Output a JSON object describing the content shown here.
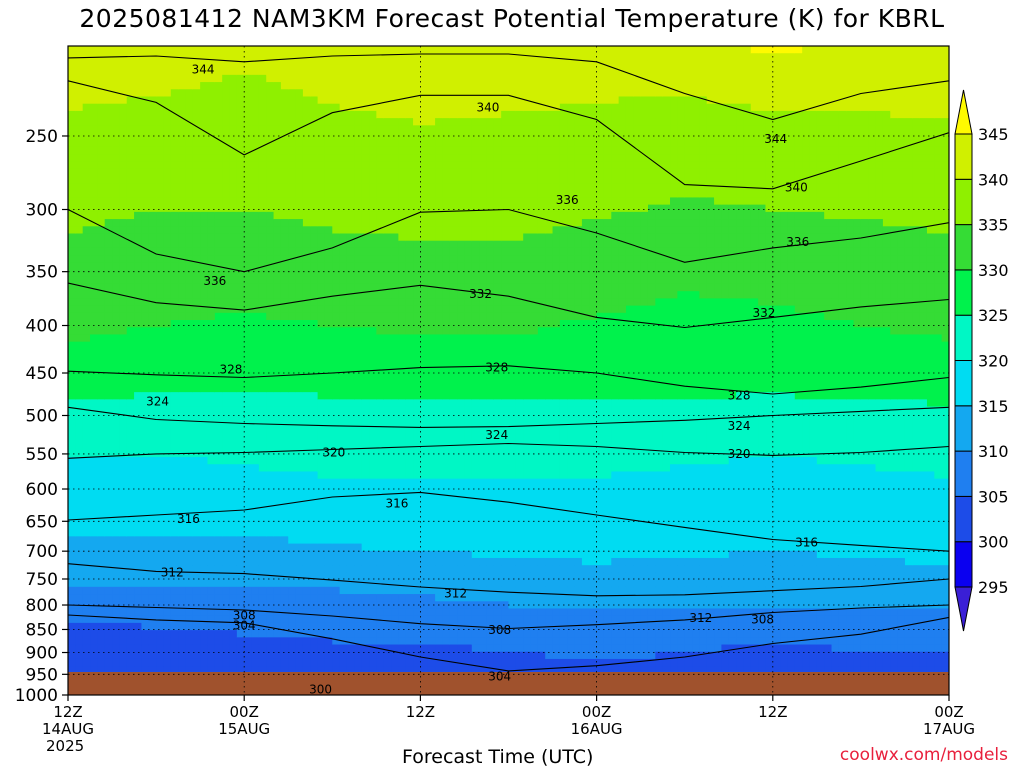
{
  "chart_data": {
    "type": "heatmap",
    "title": "2025081412 NAM3KM Forecast Potential Temperature (K) for KBRL",
    "xlabel": "Forecast Time (UTC)",
    "ylabel": "",
    "credit": "coolwx.com/models",
    "x_range_hours": [
      0,
      60
    ],
    "x_ticks": [
      {
        "hour": 0,
        "lines": [
          "12Z",
          "14AUG",
          "2025"
        ]
      },
      {
        "hour": 12,
        "lines": [
          "00Z",
          "15AUG"
        ]
      },
      {
        "hour": 24,
        "lines": [
          "12Z"
        ]
      },
      {
        "hour": 36,
        "lines": [
          "00Z",
          "16AUG"
        ]
      },
      {
        "hour": 48,
        "lines": [
          "12Z"
        ]
      },
      {
        "hour": 60,
        "lines": [
          "00Z",
          "17AUG"
        ]
      }
    ],
    "y_scale": "log-pressure",
    "y_range_hPa": [
      200,
      1000
    ],
    "y_ticks": [
      250,
      300,
      350,
      400,
      450,
      500,
      550,
      600,
      650,
      700,
      750,
      800,
      850,
      900,
      950,
      1000
    ],
    "grid": true,
    "colorbar": {
      "levels": [
        295,
        300,
        305,
        310,
        315,
        320,
        325,
        330,
        335,
        340,
        345
      ],
      "colors": [
        "#3a1fd6",
        "#0a00f0",
        "#1d4ce8",
        "#1f7ff0",
        "#14a8f0",
        "#00dcf2",
        "#00f7c5",
        "#00f24c",
        "#35dc35",
        "#8ff000",
        "#d0f000",
        "#fffa00"
      ]
    },
    "series": [
      {
        "level": 300,
        "label": "300",
        "x": [
          15,
          17,
          20,
          22,
          24,
          26,
          28,
          29
        ],
        "y": [
          986,
          978,
          975,
          975,
          975,
          976,
          978,
          990
        ]
      },
      {
        "level": 304,
        "label": "304",
        "x": [
          0,
          6,
          12,
          18,
          24,
          30,
          36,
          42,
          48,
          54,
          60
        ],
        "y": [
          820,
          830,
          836,
          870,
          910,
          942,
          930,
          910,
          880,
          860,
          825
        ]
      },
      {
        "level": 308,
        "label": "308",
        "x": [
          0,
          6,
          12,
          18,
          24,
          30,
          36,
          42,
          48,
          54,
          60
        ],
        "y": [
          800,
          805,
          810,
          822,
          838,
          848,
          840,
          830,
          815,
          806,
          800
        ]
      },
      {
        "level": 312,
        "label": "312",
        "x": [
          0,
          6,
          12,
          18,
          24,
          30,
          36,
          42,
          48,
          54,
          60
        ],
        "y": [
          722,
          736,
          740,
          752,
          765,
          775,
          782,
          780,
          772,
          764,
          750
        ]
      },
      {
        "level": 316,
        "label": "316",
        "x": [
          0,
          6,
          12,
          18,
          24,
          30,
          36,
          42,
          48,
          54,
          60
        ],
        "y": [
          648,
          640,
          632,
          612,
          605,
          620,
          640,
          660,
          680,
          690,
          700
        ]
      },
      {
        "level": 320,
        "label": "320",
        "x": [
          0,
          6,
          12,
          18,
          24,
          30,
          36,
          42,
          48,
          54,
          60
        ],
        "y": [
          556,
          550,
          548,
          544,
          540,
          536,
          540,
          548,
          552,
          548,
          540
        ]
      },
      {
        "level": 324,
        "label": "324",
        "x": [
          0,
          6,
          12,
          18,
          24,
          30,
          36,
          42,
          48,
          54,
          60
        ],
        "y": [
          490,
          505,
          510,
          513,
          515,
          514,
          510,
          506,
          500,
          495,
          490
        ]
      },
      {
        "level": 328,
        "label": "328",
        "x": [
          0,
          6,
          12,
          18,
          24,
          30,
          36,
          42,
          48,
          54,
          60
        ],
        "y": [
          448,
          452,
          455,
          450,
          444,
          442,
          450,
          465,
          474,
          466,
          455
        ]
      },
      {
        "level": 332,
        "label": "332",
        "x": [
          0,
          6,
          12,
          18,
          24,
          30,
          36,
          42,
          48,
          54,
          60
        ],
        "y": [
          360,
          378,
          385,
          372,
          362,
          372,
          392,
          402,
          392,
          382,
          375
        ]
      },
      {
        "level": 336,
        "label": "336",
        "x": [
          0,
          6,
          12,
          18,
          24,
          30,
          36,
          42,
          48,
          54,
          60
        ],
        "y": [
          300,
          335,
          350,
          330,
          302,
          300,
          318,
          342,
          330,
          322,
          310
        ]
      },
      {
        "level": 340,
        "label": "340",
        "x": [
          0,
          6,
          12,
          18,
          24,
          30,
          36,
          42,
          48,
          54,
          60
        ],
        "y": [
          218,
          230,
          262,
          236,
          226,
          226,
          240,
          282,
          285,
          266,
          248
        ]
      },
      {
        "level": 344,
        "label": "344",
        "x": [
          0,
          6,
          12,
          18,
          24,
          30,
          36,
          42,
          48,
          54,
          60
        ],
        "y": [
          206,
          205,
          208,
          205,
          204,
          204,
          208,
          225,
          240,
          225,
          218
        ]
      }
    ],
    "field": {
      "x": [
        0,
        6,
        12,
        18,
        24,
        30,
        36,
        42,
        48,
        54,
        60
      ],
      "rows": [
        {
          "p": 1000,
          "v": [
            300.5,
            301,
            301,
            301,
            300,
            300,
            301,
            301,
            300,
            301,
            302
          ]
        },
        {
          "p": 950,
          "v": [
            300,
            301.5,
            302.5,
            303,
            302,
            302,
            303,
            303,
            302,
            303,
            303
          ]
        },
        {
          "p": 900,
          "v": [
            300,
            302,
            303,
            304,
            304,
            305,
            306,
            305,
            304,
            305,
            305
          ]
        },
        {
          "p": 850,
          "v": [
            303,
            305,
            305.5,
            306,
            306.5,
            307,
            307.5,
            307,
            306,
            306.5,
            307.5
          ]
        },
        {
          "p": 800,
          "v": [
            308,
            308,
            307.5,
            308,
            309,
            310,
            310.5,
            310,
            310,
            310,
            310.5
          ]
        },
        {
          "p": 750,
          "v": [
            311.5,
            311,
            311,
            311.5,
            312,
            313,
            313.5,
            313,
            313,
            313.5,
            314
          ]
        },
        {
          "p": 700,
          "v": [
            314,
            313.5,
            313.5,
            314.5,
            315,
            315.5,
            316,
            315.5,
            315,
            315.5,
            316
          ]
        },
        {
          "p": 650,
          "v": [
            316,
            316.5,
            316.5,
            317,
            317.5,
            317.5,
            317.5,
            317,
            316.5,
            316.5,
            316.5
          ]
        },
        {
          "p": 600,
          "v": [
            318.5,
            318.5,
            319,
            319.5,
            319.5,
            319.5,
            319.5,
            319,
            319,
            319,
            319.5
          ]
        },
        {
          "p": 550,
          "v": [
            320,
            320,
            320.5,
            321,
            321,
            321,
            321,
            320.5,
            320,
            320.5,
            321
          ]
        },
        {
          "p": 500,
          "v": [
            323.5,
            322.5,
            322.5,
            323,
            323,
            323,
            323,
            323.5,
            323.5,
            324,
            324
          ]
        },
        {
          "p": 450,
          "v": [
            328,
            327.5,
            327,
            327.5,
            328.5,
            328.5,
            328,
            327,
            326.5,
            327,
            327.5
          ]
        },
        {
          "p": 400,
          "v": [
            331,
            330,
            329.5,
            330,
            330.5,
            330.5,
            329.5,
            328.5,
            329,
            330,
            331
          ]
        },
        {
          "p": 350,
          "v": [
            333.5,
            332,
            331.5,
            333,
            334,
            333.5,
            332.5,
            331,
            331.5,
            332.5,
            333.5
          ]
        },
        {
          "p": 300,
          "v": [
            336,
            335,
            335,
            336,
            336,
            336.5,
            335.5,
            334.5,
            335,
            335.5,
            336
          ]
        },
        {
          "p": 250,
          "v": [
            339,
            338,
            337.5,
            339,
            339.5,
            339,
            338.5,
            337.5,
            337.5,
            338.5,
            339
          ]
        },
        {
          "p": 200,
          "v": [
            342.5,
            342.5,
            341,
            342,
            343,
            343,
            342.5,
            343,
            346,
            344,
            345
          ]
        }
      ]
    },
    "annotations": [
      {
        "text": "344",
        "x": 9.2,
        "y": 212
      },
      {
        "text": "340",
        "x": 28.6,
        "y": 233
      },
      {
        "text": "344",
        "x": 48.2,
        "y": 252
      },
      {
        "text": "340",
        "x": 49.6,
        "y": 284
      },
      {
        "text": "336",
        "x": 34.0,
        "y": 293
      },
      {
        "text": "336",
        "x": 49.7,
        "y": 325
      },
      {
        "text": "336",
        "x": 10.0,
        "y": 358
      },
      {
        "text": "332",
        "x": 28.1,
        "y": 370
      },
      {
        "text": "332",
        "x": 47.4,
        "y": 388
      },
      {
        "text": "328",
        "x": 11.1,
        "y": 446
      },
      {
        "text": "328",
        "x": 29.2,
        "y": 444
      },
      {
        "text": "328",
        "x": 45.7,
        "y": 476
      },
      {
        "text": "324",
        "x": 6.1,
        "y": 483
      },
      {
        "text": "324",
        "x": 29.2,
        "y": 525
      },
      {
        "text": "324",
        "x": 45.7,
        "y": 513
      },
      {
        "text": "320",
        "x": 18.1,
        "y": 548
      },
      {
        "text": "320",
        "x": 45.7,
        "y": 550
      },
      {
        "text": "316",
        "x": 8.2,
        "y": 646
      },
      {
        "text": "316",
        "x": 22.4,
        "y": 622
      },
      {
        "text": "316",
        "x": 50.3,
        "y": 685
      },
      {
        "text": "312",
        "x": 7.1,
        "y": 738
      },
      {
        "text": "312",
        "x": 26.4,
        "y": 777
      },
      {
        "text": "312",
        "x": 43.1,
        "y": 826
      },
      {
        "text": "308",
        "x": 12.0,
        "y": 821
      },
      {
        "text": "308",
        "x": 29.4,
        "y": 851
      },
      {
        "text": "308",
        "x": 47.3,
        "y": 829
      },
      {
        "text": "304",
        "x": 12.0,
        "y": 842
      },
      {
        "text": "304",
        "x": 29.4,
        "y": 955
      },
      {
        "text": "300",
        "x": 17.2,
        "y": 987
      }
    ]
  }
}
